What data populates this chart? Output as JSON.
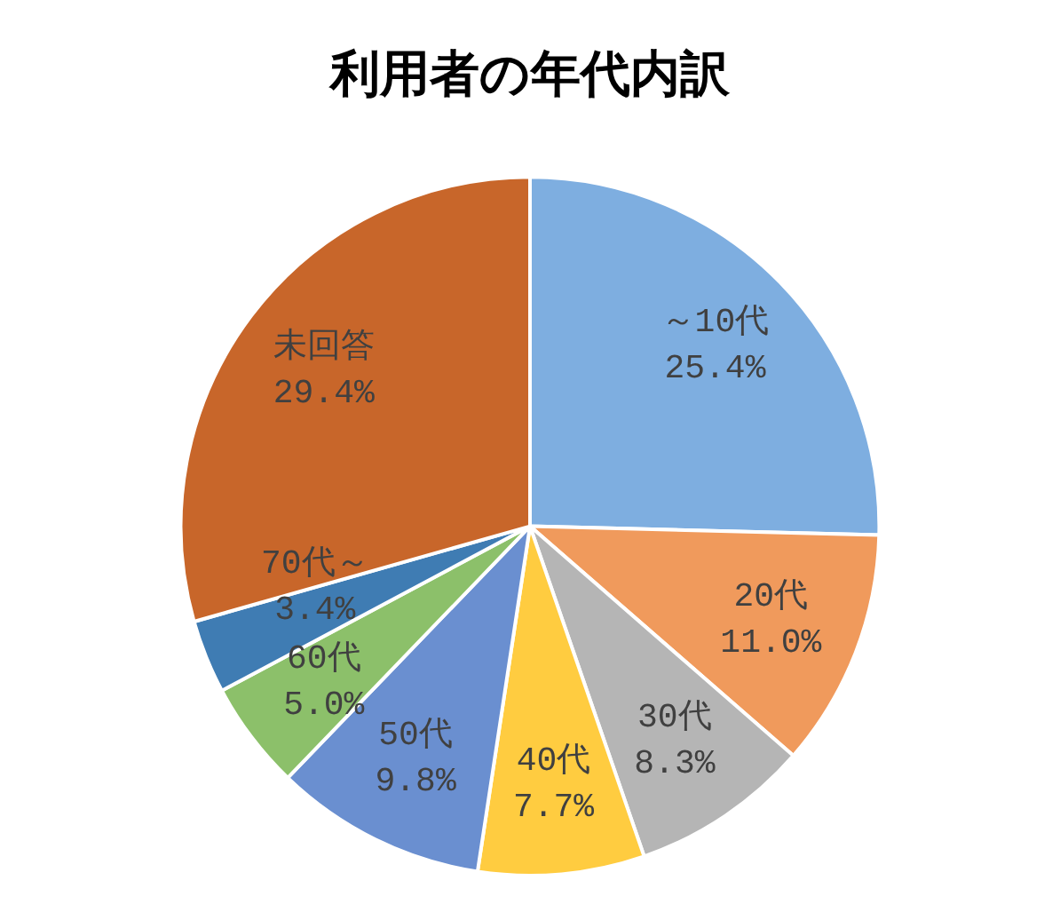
{
  "chart_data": {
    "type": "pie",
    "title": "利用者の年代内訳",
    "categories": [
      "～10代",
      "20代",
      "30代",
      "40代",
      "50代",
      "60代",
      "70代～",
      "未回答"
    ],
    "values": [
      25.4,
      11.0,
      8.3,
      7.7,
      9.8,
      5.0,
      3.4,
      29.4
    ],
    "value_labels": [
      "25.4%",
      "11.0%",
      "8.3%",
      "7.7%",
      "9.8%",
      "5.0%",
      "3.4%",
      "29.4%"
    ],
    "colors": [
      "#7eaee0",
      "#f09a5c",
      "#b5b5b5",
      "#ffcc40",
      "#6a8fd0",
      "#8cc06a",
      "#3f7cb3",
      "#c8662a"
    ]
  }
}
